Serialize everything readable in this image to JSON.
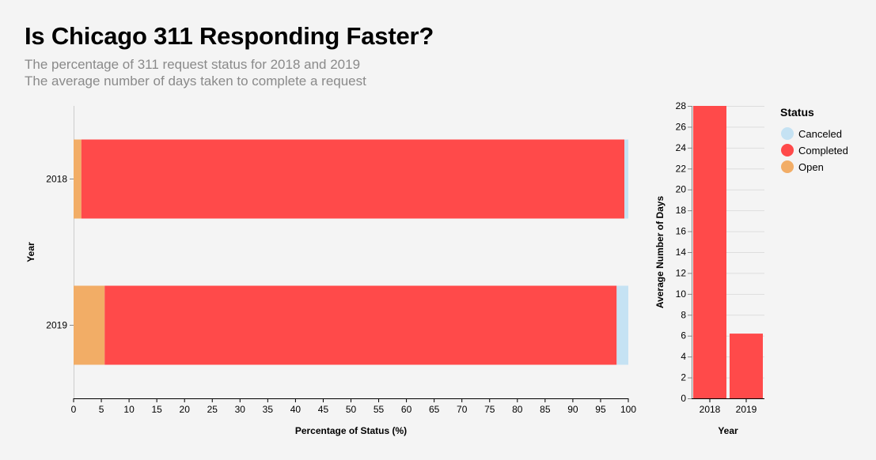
{
  "header": {
    "title": "Is Chicago 311 Responding Faster?",
    "subtitle_lines": [
      "The percentage of 311 request status for 2018 and 2019",
      "The average number of days taken to complete a request"
    ]
  },
  "colors": {
    "Canceled": "#c5e2f3",
    "Completed": "#ff4a4a",
    "Open": "#f2ad66"
  },
  "chart_data": [
    {
      "type": "bar",
      "orientation": "horizontal",
      "stacked": true,
      "categories": [
        "2018",
        "2019"
      ],
      "series": [
        {
          "name": "Open",
          "values": [
            1.4,
            5.6
          ]
        },
        {
          "name": "Completed",
          "values": [
            97.9,
            92.3
          ]
        },
        {
          "name": "Canceled",
          "values": [
            0.7,
            2.1
          ]
        }
      ],
      "xlabel": "Percentage of Status (%)",
      "ylabel": "Year",
      "xlim": [
        0,
        100
      ],
      "xticks": [
        0,
        5,
        10,
        15,
        20,
        25,
        30,
        35,
        40,
        45,
        50,
        55,
        60,
        65,
        70,
        75,
        80,
        85,
        90,
        95,
        100
      ],
      "grid": false
    },
    {
      "type": "bar",
      "categories": [
        "2018",
        "2019"
      ],
      "values": [
        28,
        6.2
      ],
      "xlabel": "Year",
      "ylabel": "Average Number of Days",
      "ylim": [
        0,
        28
      ],
      "yticks": [
        0,
        2,
        4,
        6,
        8,
        10,
        12,
        14,
        16,
        18,
        20,
        22,
        24,
        26,
        28
      ],
      "grid": true
    }
  ],
  "legend": {
    "title": "Status",
    "placement": "right",
    "items": [
      "Canceled",
      "Completed",
      "Open"
    ]
  }
}
